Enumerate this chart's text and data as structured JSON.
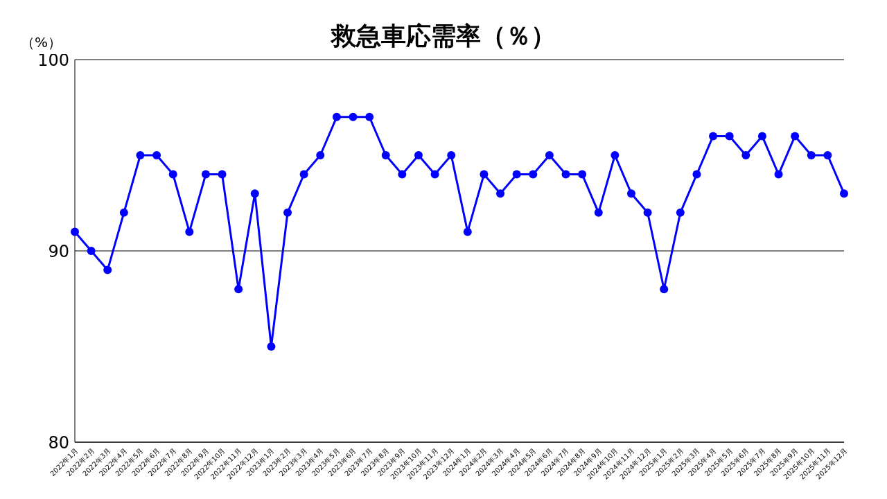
{
  "chart_data": {
    "type": "line",
    "title": "救急車応需率（％）",
    "ylabel": "（%）",
    "categories": [
      "2022年1月",
      "2022年2月",
      "2022年3月",
      "2022年4月",
      "2022年5月",
      "2022年6月",
      "2022年7月",
      "2022年8月",
      "2022年9月",
      "2022年10月",
      "2022年11月",
      "2022年12月",
      "2023年1月",
      "2023年2月",
      "2023年3月",
      "2023年4月",
      "2023年5月",
      "2023年6月",
      "2023年7月",
      "2023年8月",
      "2023年9月",
      "2023年10月",
      "2023年11月",
      "2023年12月",
      "2024年1月",
      "2024年2月",
      "2024年3月",
      "2024年4月",
      "2024年5月",
      "2024年6月",
      "2024年7月",
      "2024年8月",
      "2024年9月",
      "2024年10月",
      "2024年11月",
      "2024年12月",
      "2025年1月",
      "2025年2月",
      "2025年3月",
      "2025年4月",
      "2025年5月",
      "2025年6月",
      "2025年7月",
      "2025年8月",
      "2025年9月",
      "2025年10月",
      "2025年11月",
      "2025年12月"
    ],
    "series": [
      {
        "color": "#0000ff",
        "values": [
          91,
          90,
          89,
          92,
          95,
          95,
          94,
          91,
          94,
          94,
          88,
          93,
          85,
          92,
          94,
          95,
          97,
          97,
          97,
          95,
          94,
          95,
          94,
          95,
          91,
          94,
          93,
          94,
          94,
          95,
          94,
          94,
          92,
          95,
          93,
          92,
          88,
          92,
          94,
          96,
          96,
          95,
          96,
          94,
          96,
          95,
          95,
          93
        ]
      }
    ],
    "ylim": [
      80,
      100
    ],
    "yticks": [
      80,
      90,
      100
    ],
    "grid": "y",
    "legend": false,
    "marker": "circle",
    "line_style": "solid"
  }
}
